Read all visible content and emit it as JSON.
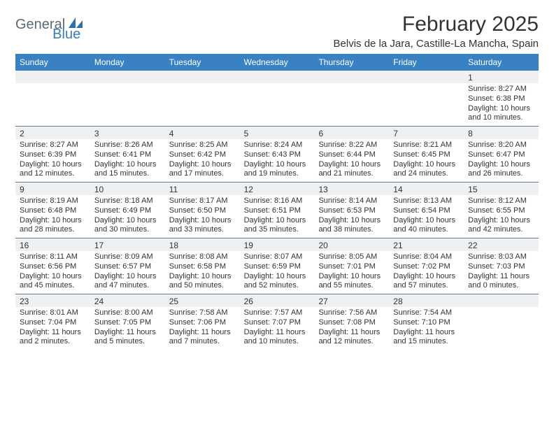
{
  "logo": {
    "general": "General",
    "blue": "Blue"
  },
  "title": "February 2025",
  "location": "Belvis de la Jara, Castille-La Mancha, Spain",
  "colors": {
    "header_bg": "#3a81c4",
    "header_text": "#ffffff",
    "daynum_bg": "#eef0f2",
    "divider": "#6b7d8e",
    "text": "#333333",
    "logo_gray": "#5a6a78",
    "logo_blue": "#3a7ab8"
  },
  "day_names": [
    "Sunday",
    "Monday",
    "Tuesday",
    "Wednesday",
    "Thursday",
    "Friday",
    "Saturday"
  ],
  "weeks": [
    {
      "nums": [
        "",
        "",
        "",
        "",
        "",
        "",
        "1"
      ],
      "details": [
        "",
        "",
        "",
        "",
        "",
        "",
        "Sunrise: 8:27 AM\nSunset: 6:38 PM\nDaylight: 10 hours and 10 minutes."
      ]
    },
    {
      "nums": [
        "2",
        "3",
        "4",
        "5",
        "6",
        "7",
        "8"
      ],
      "details": [
        "Sunrise: 8:27 AM\nSunset: 6:39 PM\nDaylight: 10 hours and 12 minutes.",
        "Sunrise: 8:26 AM\nSunset: 6:41 PM\nDaylight: 10 hours and 15 minutes.",
        "Sunrise: 8:25 AM\nSunset: 6:42 PM\nDaylight: 10 hours and 17 minutes.",
        "Sunrise: 8:24 AM\nSunset: 6:43 PM\nDaylight: 10 hours and 19 minutes.",
        "Sunrise: 8:22 AM\nSunset: 6:44 PM\nDaylight: 10 hours and 21 minutes.",
        "Sunrise: 8:21 AM\nSunset: 6:45 PM\nDaylight: 10 hours and 24 minutes.",
        "Sunrise: 8:20 AM\nSunset: 6:47 PM\nDaylight: 10 hours and 26 minutes."
      ]
    },
    {
      "nums": [
        "9",
        "10",
        "11",
        "12",
        "13",
        "14",
        "15"
      ],
      "details": [
        "Sunrise: 8:19 AM\nSunset: 6:48 PM\nDaylight: 10 hours and 28 minutes.",
        "Sunrise: 8:18 AM\nSunset: 6:49 PM\nDaylight: 10 hours and 30 minutes.",
        "Sunrise: 8:17 AM\nSunset: 6:50 PM\nDaylight: 10 hours and 33 minutes.",
        "Sunrise: 8:16 AM\nSunset: 6:51 PM\nDaylight: 10 hours and 35 minutes.",
        "Sunrise: 8:14 AM\nSunset: 6:53 PM\nDaylight: 10 hours and 38 minutes.",
        "Sunrise: 8:13 AM\nSunset: 6:54 PM\nDaylight: 10 hours and 40 minutes.",
        "Sunrise: 8:12 AM\nSunset: 6:55 PM\nDaylight: 10 hours and 42 minutes."
      ]
    },
    {
      "nums": [
        "16",
        "17",
        "18",
        "19",
        "20",
        "21",
        "22"
      ],
      "details": [
        "Sunrise: 8:11 AM\nSunset: 6:56 PM\nDaylight: 10 hours and 45 minutes.",
        "Sunrise: 8:09 AM\nSunset: 6:57 PM\nDaylight: 10 hours and 47 minutes.",
        "Sunrise: 8:08 AM\nSunset: 6:58 PM\nDaylight: 10 hours and 50 minutes.",
        "Sunrise: 8:07 AM\nSunset: 6:59 PM\nDaylight: 10 hours and 52 minutes.",
        "Sunrise: 8:05 AM\nSunset: 7:01 PM\nDaylight: 10 hours and 55 minutes.",
        "Sunrise: 8:04 AM\nSunset: 7:02 PM\nDaylight: 10 hours and 57 minutes.",
        "Sunrise: 8:03 AM\nSunset: 7:03 PM\nDaylight: 11 hours and 0 minutes."
      ]
    },
    {
      "nums": [
        "23",
        "24",
        "25",
        "26",
        "27",
        "28",
        ""
      ],
      "details": [
        "Sunrise: 8:01 AM\nSunset: 7:04 PM\nDaylight: 11 hours and 2 minutes.",
        "Sunrise: 8:00 AM\nSunset: 7:05 PM\nDaylight: 11 hours and 5 minutes.",
        "Sunrise: 7:58 AM\nSunset: 7:06 PM\nDaylight: 11 hours and 7 minutes.",
        "Sunrise: 7:57 AM\nSunset: 7:07 PM\nDaylight: 11 hours and 10 minutes.",
        "Sunrise: 7:56 AM\nSunset: 7:08 PM\nDaylight: 11 hours and 12 minutes.",
        "Sunrise: 7:54 AM\nSunset: 7:10 PM\nDaylight: 11 hours and 15 minutes.",
        ""
      ]
    }
  ]
}
